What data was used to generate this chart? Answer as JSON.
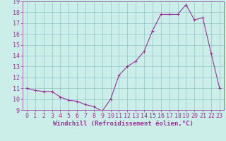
{
  "hours": [
    0,
    1,
    2,
    3,
    4,
    5,
    6,
    7,
    8,
    9,
    10,
    11,
    12,
    13,
    14,
    15,
    16,
    17,
    18,
    19,
    20,
    21,
    22,
    23
  ],
  "values": [
    11.0,
    10.8,
    10.7,
    10.7,
    10.2,
    9.9,
    9.8,
    9.5,
    9.3,
    8.9,
    10.0,
    12.2,
    13.0,
    13.5,
    14.4,
    16.3,
    17.8,
    17.8,
    17.8,
    18.7,
    17.3,
    17.5,
    14.2,
    11.0
  ],
  "line_color": "#993399",
  "marker_color": "#993399",
  "bg_color": "#cceee8",
  "grid_color": "#99cccc",
  "axis_color": "#993399",
  "tick_color": "#993399",
  "xlabel": "Windchill (Refroidissement éolien,°C)",
  "ylim": [
    9,
    19
  ],
  "xlim_min": -0.5,
  "xlim_max": 23.5,
  "yticks": [
    9,
    10,
    11,
    12,
    13,
    14,
    15,
    16,
    17,
    18,
    19
  ],
  "xticks": [
    0,
    1,
    2,
    3,
    4,
    5,
    6,
    7,
    8,
    9,
    10,
    11,
    12,
    13,
    14,
    15,
    16,
    17,
    18,
    19,
    20,
    21,
    22,
    23
  ],
  "tick_font_size": 6.0,
  "label_font_size": 6.5
}
